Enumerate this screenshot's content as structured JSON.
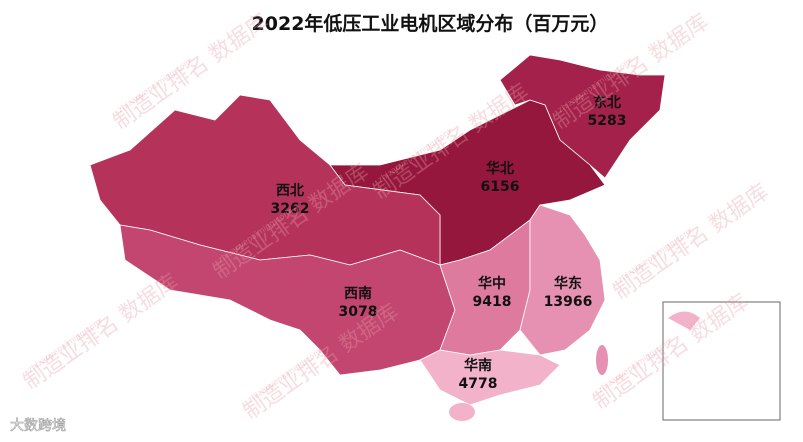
{
  "chart_data": {
    "type": "map",
    "title": "2022年低压工业电机区域分布（百万元）",
    "regions": [
      {
        "name": "东北",
        "value": 5283,
        "color": "#a3214a"
      },
      {
        "name": "华北",
        "value": 6156,
        "color": "#96173d"
      },
      {
        "name": "西北",
        "value": 3262,
        "color": "#b5335b"
      },
      {
        "name": "西南",
        "value": 3078,
        "color": "#c2466f"
      },
      {
        "name": "华中",
        "value": 9418,
        "color": "#de7a9e"
      },
      {
        "name": "华东",
        "value": 13966,
        "color": "#e691b1"
      },
      {
        "name": "华南",
        "value": 4778,
        "color": "#f2b3ca"
      }
    ]
  },
  "watermark": "制造业排名 数据库",
  "watermark_url": "zhizaoyepaiming.com",
  "logo": "大数跨境"
}
